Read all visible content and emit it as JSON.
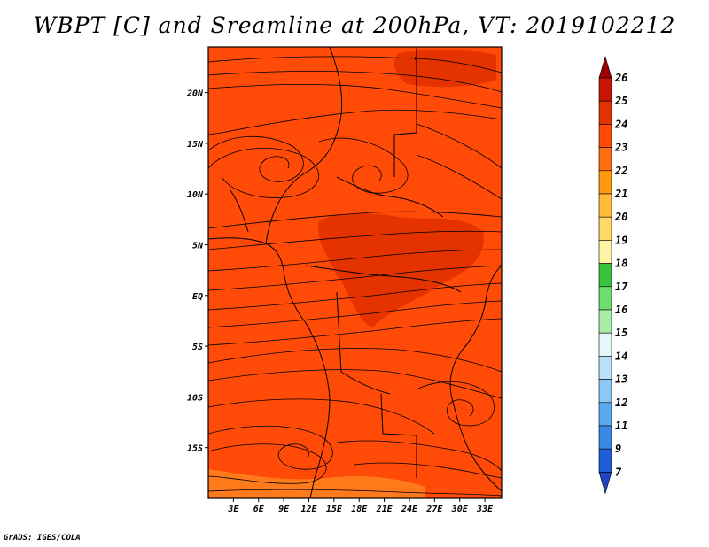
{
  "title": "WBPT [C] and Sreamline at 200hPa, VT: 2019102212",
  "credit": "GrADS: IGES/COLA",
  "map": {
    "lat_labels": [
      "20N",
      "15N",
      "10N",
      "5N",
      "EQ",
      "5S",
      "10S",
      "15S"
    ],
    "lat_values": [
      20,
      15,
      10,
      5,
      0,
      -5,
      -10,
      -15
    ],
    "lon_labels": [
      "3E",
      "6E",
      "9E",
      "12E",
      "15E",
      "18E",
      "21E",
      "24E",
      "27E",
      "30E",
      "33E"
    ],
    "lon_values": [
      3,
      6,
      9,
      12,
      15,
      18,
      21,
      24,
      27,
      30,
      33
    ],
    "lon_range": [
      0,
      35
    ],
    "lat_range": [
      -20,
      24.5
    ],
    "background_color": "#ff4a08",
    "warm_patch_color": "#e53300",
    "cool_patch_color": "#ff7a1a"
  },
  "colorbar": {
    "labels": [
      "26",
      "25",
      "24",
      "23",
      "22",
      "21",
      "20",
      "19",
      "18",
      "17",
      "16",
      "15",
      "14",
      "13",
      "12",
      "11",
      "9",
      "7"
    ],
    "colors": [
      "#a00000",
      "#c81400",
      "#e13200",
      "#ff4a08",
      "#ff6e10",
      "#ff9a0c",
      "#ffbb3a",
      "#ffd865",
      "#fff3a6",
      "#38c23e",
      "#6fdd6f",
      "#a8eea8",
      "#e6f8fa",
      "#b8e1f8",
      "#8bc8f5",
      "#5aa9ee",
      "#3a87e6",
      "#1f5fd6",
      "#1c44c4"
    ]
  }
}
